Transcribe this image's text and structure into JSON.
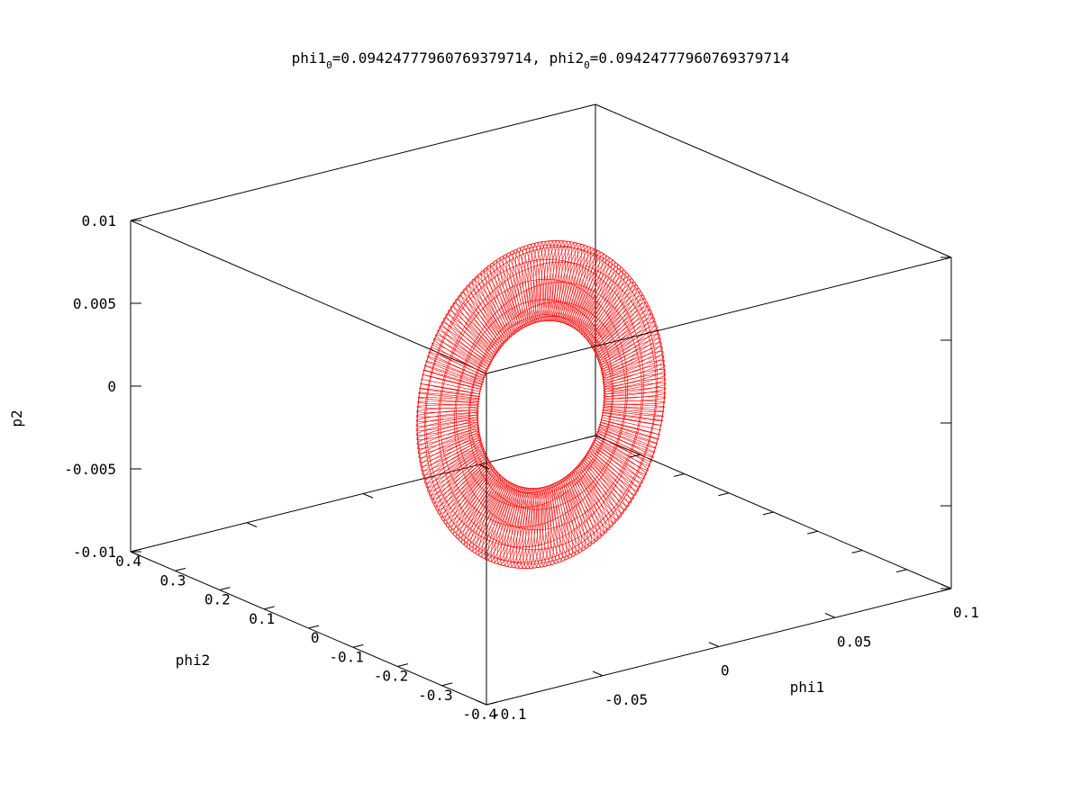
{
  "chart_data": {
    "type": "surface",
    "title": {
      "part1": "phi1",
      "sub1": "0",
      "part2": "=0.09424777960769379714, phi2",
      "sub2": "0",
      "part3": "=0.09424777960769379714"
    },
    "xlabel": "phi1",
    "ylabel": "phi2",
    "zlabel": "p2",
    "x_ticks": [
      "-0.1",
      "-0.05",
      "0",
      "0.05",
      "0.1"
    ],
    "x_tick_values": [
      -0.1,
      -0.05,
      0,
      0.05,
      0.1
    ],
    "y_ticks": [
      "-0.4",
      "-0.3",
      "-0.2",
      "-0.1",
      "0",
      "0.1",
      "0.2",
      "0.3",
      "0.4"
    ],
    "y_tick_values": [
      -0.4,
      -0.3,
      -0.2,
      -0.1,
      0,
      0.1,
      0.2,
      0.3,
      0.4
    ],
    "z_ticks": [
      "-0.01",
      "-0.005",
      "0",
      "0.005",
      "0.01"
    ],
    "z_tick_values": [
      -0.01,
      -0.005,
      0,
      0.005,
      0.01
    ],
    "xlim": [
      -0.1,
      0.1
    ],
    "ylim": [
      -0.4,
      0.4
    ],
    "zlim": [
      -0.01,
      0.01
    ],
    "series_color": "#ff0000",
    "surface": {
      "shape": "torus",
      "center": [
        0,
        0,
        0
      ],
      "grid_lines": 220
    }
  }
}
